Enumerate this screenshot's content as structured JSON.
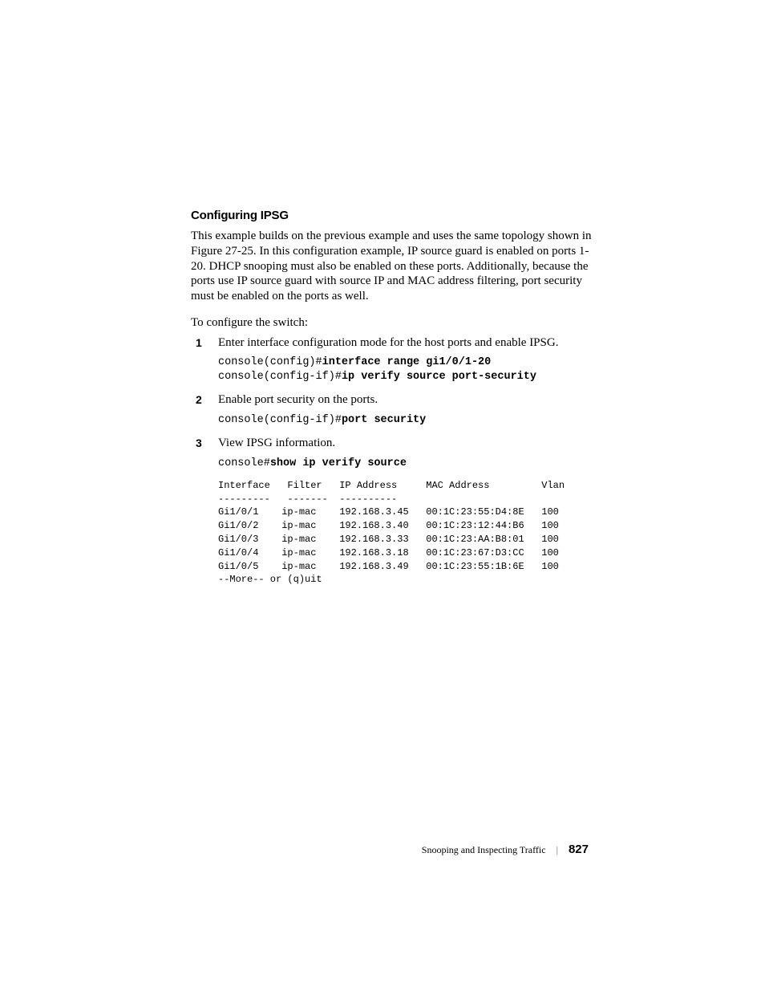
{
  "heading": "Configuring IPSG",
  "paragraph1": "This example builds on the previous example and uses the same topology shown in Figure 27-25. In this configuration example, IP source guard is enabled on ports 1-20. DHCP snooping must also be enabled on these ports. Additionally, because the ports use IP source guard with source IP and MAC address filtering, port security must be enabled on the ports as well.",
  "intro": "To configure the switch:",
  "steps": {
    "s1": {
      "text": "Enter interface configuration mode for the host ports and enable IPSG.",
      "code_prefix1": "console(config)#",
      "code_cmd1": "interface range gi1/0/1-20",
      "code_prefix2": "console(config-if)#",
      "code_cmd2": "ip verify source port-security"
    },
    "s2": {
      "text": "Enable port security on the ports.",
      "code_prefix1": "console(config-if)#",
      "code_cmd1": "port security"
    },
    "s3": {
      "text": "View IPSG information.",
      "code_prefix1": "console#",
      "code_cmd1": "show ip verify source",
      "table": "Interface   Filter   IP Address     MAC Address         Vlan\n---------   -------  ----------\nGi1/0/1    ip-mac    192.168.3.45   00:1C:23:55:D4:8E   100\nGi1/0/2    ip-mac    192.168.3.40   00:1C:23:12:44:B6   100\nGi1/0/3    ip-mac    192.168.3.33   00:1C:23:AA:B8:01   100\nGi1/0/4    ip-mac    192.168.3.18   00:1C:23:67:D3:CC   100\nGi1/0/5    ip-mac    192.168.3.49   00:1C:23:55:1B:6E   100\n--More-- or (q)uit"
    }
  },
  "footer": {
    "title": "Snooping and Inspecting Traffic",
    "sep": "|",
    "page": "827"
  }
}
